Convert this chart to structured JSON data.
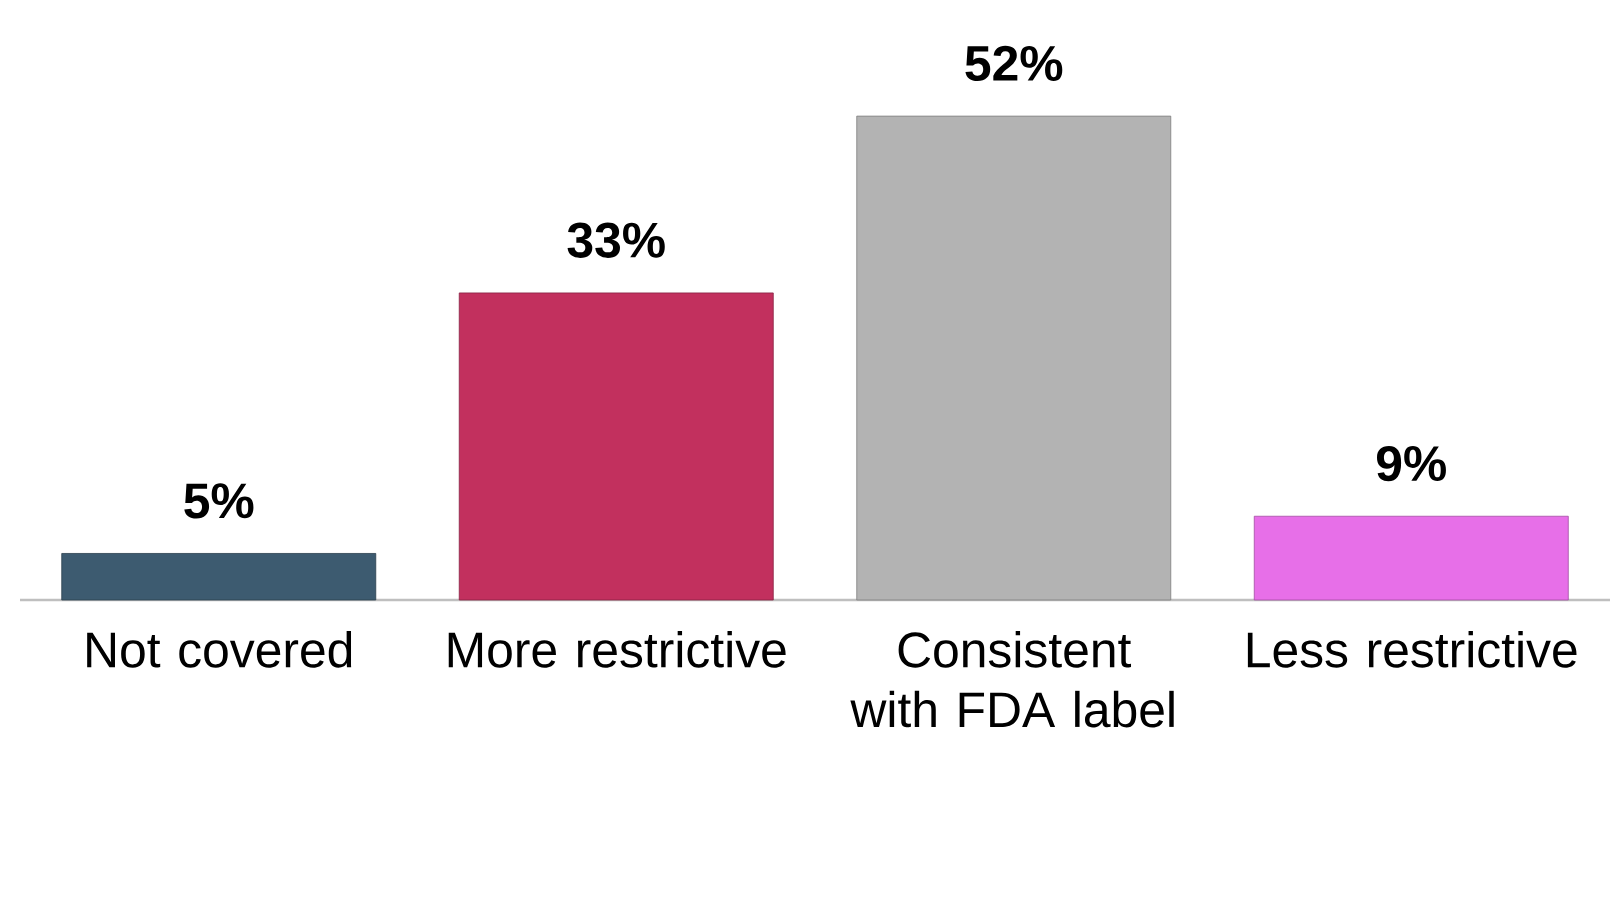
{
  "chart_data": {
    "type": "bar",
    "categories": [
      "Not covered",
      "More restrictive",
      "Consistent with FDA label",
      "Less restrictive"
    ],
    "values": [
      5,
      33,
      52,
      9
    ],
    "colors": [
      "#3d5b70",
      "#c2305e",
      "#b3b3b3",
      "#e76fe8"
    ],
    "value_labels": [
      "5%",
      "33%",
      "52%",
      "9%"
    ]
  }
}
